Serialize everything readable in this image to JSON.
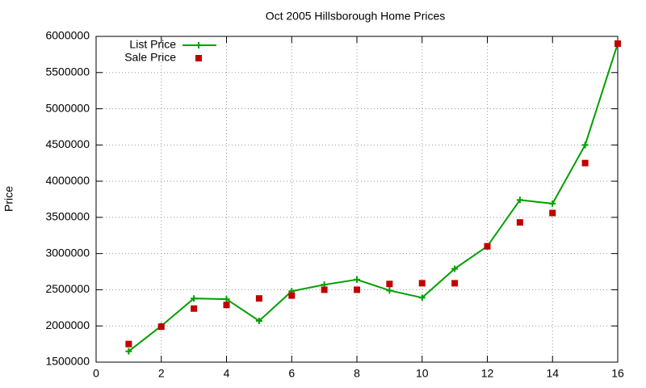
{
  "chart_data": {
    "type": "line",
    "title": "Oct 2005 Hillsborough Home Prices",
    "y_label": "Price",
    "x": [
      1,
      2,
      3,
      4,
      5,
      6,
      7,
      8,
      9,
      10,
      11,
      12,
      13,
      14,
      15,
      16
    ],
    "series": [
      {
        "name": "List Price",
        "color": "#00a000",
        "style": "linespoints",
        "values": [
          1650000,
          2000000,
          2380000,
          2370000,
          2070000,
          2480000,
          2570000,
          2640000,
          2490000,
          2390000,
          2790000,
          3100000,
          3740000,
          3690000,
          4500000,
          5900000
        ]
      },
      {
        "name": "Sale Price",
        "color": "#c00000",
        "style": "points",
        "values": [
          1750000,
          1990000,
          2240000,
          2290000,
          2380000,
          2420000,
          2500000,
          2500000,
          2580000,
          2590000,
          2590000,
          3100000,
          3430000,
          3560000,
          4250000,
          5900000
        ]
      }
    ],
    "xlim": [
      0,
      16
    ],
    "xticks": [
      0,
      2,
      4,
      6,
      8,
      10,
      12,
      14,
      16
    ],
    "ylim": [
      1500000,
      6000000
    ],
    "yticks": [
      1500000,
      2000000,
      2500000,
      3000000,
      3500000,
      4000000,
      4500000,
      5000000,
      5500000,
      6000000
    ],
    "grid": true,
    "legend": "top-left"
  }
}
